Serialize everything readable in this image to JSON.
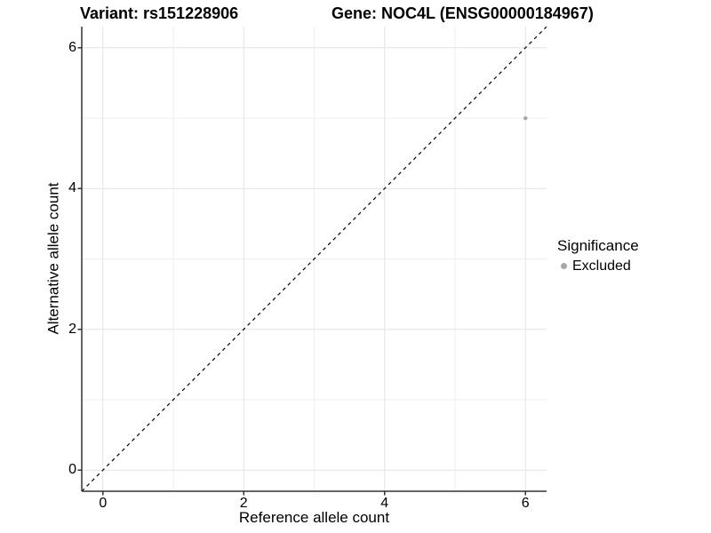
{
  "header": {
    "variant_title": "Variant: rs151228906",
    "gene_title": "Gene: NOC4L (ENSG00000184967)"
  },
  "axes": {
    "x_label": "Reference allele count",
    "y_label": "Alternative allele count"
  },
  "legend": {
    "title": "Significance",
    "items": [
      {
        "label": "Excluded",
        "color": "#a6a6a6"
      }
    ]
  },
  "chart_data": {
    "type": "scatter",
    "title_left": "Variant: rs151228906",
    "title_right": "Gene: NOC4L (ENSG00000184967)",
    "xlabel": "Reference allele count",
    "ylabel": "Alternative allele count",
    "xlim": [
      -0.3,
      6.3
    ],
    "ylim": [
      -0.3,
      6.3
    ],
    "x_major_ticks": [
      0,
      2,
      4,
      6
    ],
    "y_major_ticks": [
      0,
      2,
      4,
      6
    ],
    "x_minor_gridlines": [
      1,
      3,
      5
    ],
    "y_minor_gridlines": [
      1,
      3,
      5
    ],
    "grid": "on",
    "legend_position": "right",
    "series": [
      {
        "name": "Excluded",
        "color": "#a6a6a6",
        "points": [
          {
            "x": 6,
            "y": 5
          }
        ]
      }
    ],
    "reference_line": {
      "type": "identity y=x",
      "from": [
        -0.3,
        -0.3
      ],
      "to": [
        6.3,
        6.3
      ],
      "style": "dashed",
      "color": "#000000"
    },
    "colors": {
      "grid_major": "#e4e4e4",
      "grid_minor": "#efefef",
      "axis_line": "#333333",
      "tick_mark": "#333333",
      "text": "#000000",
      "background": "#ffffff"
    }
  }
}
